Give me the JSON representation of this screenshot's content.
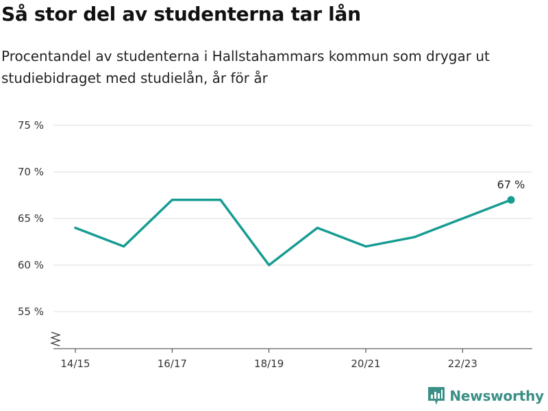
{
  "title": "Så stor del av studenterna tar lån",
  "subtitle": "Procentandel av studenterna i Hallstahammars kommun som drygar ut studiebidraget med studielån, år för år",
  "brand": {
    "name": "Newsworthy",
    "icon": "newsworthy-logo-icon",
    "color": "#3a8f86"
  },
  "chart_data": {
    "type": "line",
    "categories": [
      "14/15",
      "15/16",
      "16/17",
      "17/18",
      "18/19",
      "19/20",
      "20/21",
      "21/22",
      "22/23",
      "23/24"
    ],
    "x_tick_labels": [
      "14/15",
      "16/17",
      "18/19",
      "20/21",
      "22/23"
    ],
    "series": [
      {
        "values": [
          64,
          62,
          67,
          67,
          60,
          64,
          62,
          63,
          65,
          67
        ],
        "color": "#169c92"
      }
    ],
    "y_ticks": [
      55,
      60,
      65,
      70,
      75
    ],
    "y_tick_labels": [
      "55 %",
      "60 %",
      "65 %",
      "70 %",
      "75 %"
    ],
    "ylim": [
      51,
      75
    ],
    "y_axis_break": true,
    "annotation": {
      "index": 9,
      "text": "67 %"
    },
    "grid": true
  }
}
